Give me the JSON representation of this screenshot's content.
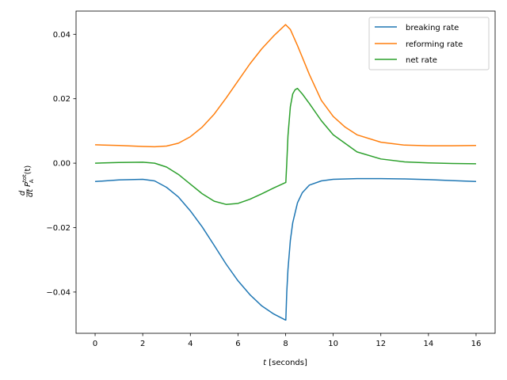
{
  "chart_data": {
    "type": "line",
    "title": "",
    "xlabel": {
      "italic": "t",
      "plain": " [seconds]"
    },
    "ylabel": {
      "italic": "P",
      "sup": "tot",
      "sub": "A",
      "arg": "(t)"
    },
    "xlim": [
      -0.8,
      16.8
    ],
    "ylim": [
      -0.0528,
      0.0472
    ],
    "x_ticks": [
      0,
      2,
      4,
      6,
      8,
      10,
      12,
      14,
      16
    ],
    "x_tick_labels": [
      "0",
      "2",
      "4",
      "6",
      "8",
      "10",
      "12",
      "14",
      "16"
    ],
    "y_ticks": [
      -0.04,
      -0.02,
      0.0,
      0.02,
      0.04
    ],
    "y_tick_labels": [
      "−0.04",
      "−0.02",
      "0.00",
      "0.02",
      "0.04"
    ],
    "grid": false,
    "legend_position": "top-right",
    "series": [
      {
        "name": "breaking rate",
        "color": "#1f77b4",
        "x": [
          0,
          1,
          2,
          2.5,
          3,
          3.5,
          4,
          4.5,
          5,
          5.5,
          6,
          6.5,
          7,
          7.5,
          8,
          8.01,
          8.05,
          8.1,
          8.2,
          8.3,
          8.5,
          8.7,
          9,
          9.5,
          10,
          11,
          12,
          13,
          14,
          15,
          16
        ],
        "y": [
          -0.0057,
          -0.0052,
          -0.005,
          -0.0055,
          -0.0075,
          -0.0105,
          -0.0148,
          -0.0198,
          -0.0255,
          -0.0313,
          -0.0365,
          -0.0408,
          -0.0443,
          -0.0468,
          -0.0487,
          -0.0487,
          -0.04,
          -0.033,
          -0.024,
          -0.0185,
          -0.0123,
          -0.0092,
          -0.0068,
          -0.0055,
          -0.005,
          -0.0048,
          -0.0048,
          -0.0049,
          -0.0051,
          -0.0054,
          -0.0057
        ]
      },
      {
        "name": "reforming rate",
        "color": "#ff7f0e",
        "x": [
          0,
          1,
          2,
          2.5,
          3,
          3.5,
          4,
          4.5,
          5,
          5.5,
          6,
          6.5,
          7,
          7.5,
          8,
          8.2,
          8.5,
          9,
          9.5,
          10,
          10.5,
          11,
          12,
          13,
          14,
          15,
          16
        ],
        "y": [
          0.0057,
          0.0055,
          0.0052,
          0.0051,
          0.0053,
          0.0062,
          0.0082,
          0.0112,
          0.0152,
          0.0202,
          0.0255,
          0.0308,
          0.0355,
          0.0395,
          0.043,
          0.0415,
          0.0365,
          0.0275,
          0.0195,
          0.0145,
          0.0112,
          0.0088,
          0.0065,
          0.0056,
          0.0054,
          0.0054,
          0.0055
        ]
      },
      {
        "name": "net rate",
        "color": "#2ca02c",
        "x": [
          0,
          1,
          2,
          2.5,
          3,
          3.5,
          4,
          4.5,
          5,
          5.5,
          6,
          6.5,
          7,
          7.5,
          8,
          8.01,
          8.05,
          8.1,
          8.2,
          8.3,
          8.4,
          8.5,
          8.7,
          9,
          9.5,
          10,
          11,
          12,
          13,
          14,
          15,
          16
        ],
        "y": [
          0.0,
          0.0002,
          0.0003,
          0.0,
          -0.0012,
          -0.0035,
          -0.0065,
          -0.0095,
          -0.0118,
          -0.0128,
          -0.0125,
          -0.0112,
          -0.0095,
          -0.0077,
          -0.006,
          -0.006,
          0.0,
          0.0085,
          0.0175,
          0.0215,
          0.0228,
          0.0232,
          0.0215,
          0.0185,
          0.0132,
          0.0088,
          0.0035,
          0.0013,
          0.0004,
          0.0001,
          -0.0001,
          -0.0002
        ]
      }
    ]
  }
}
